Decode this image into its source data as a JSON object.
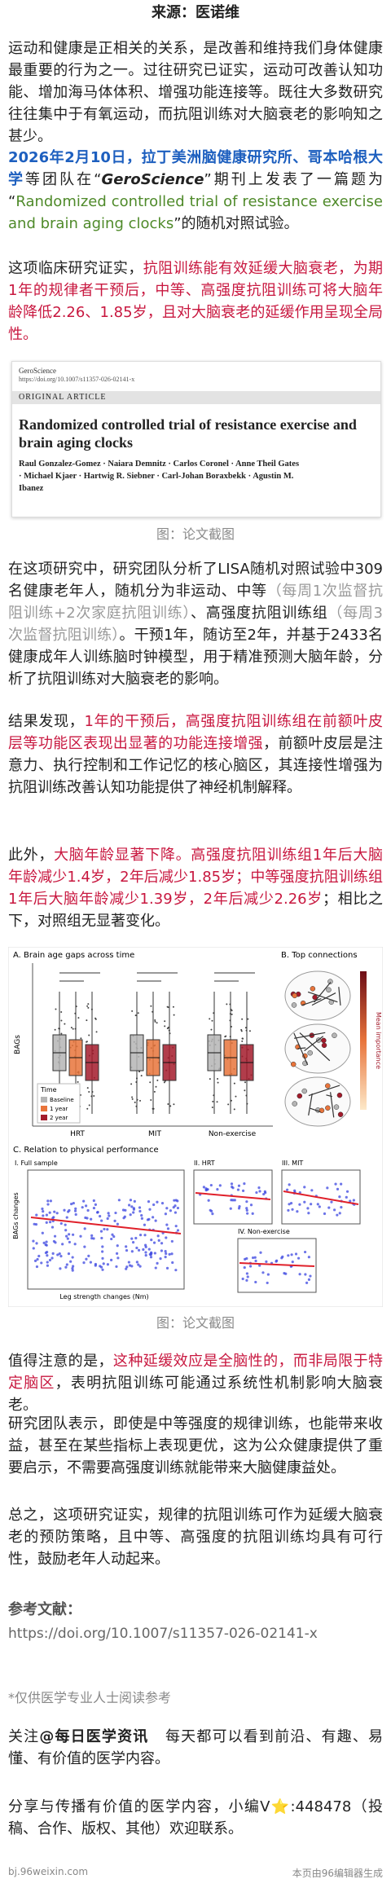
{
  "source": "来源：医诺维",
  "p1": "运动和健康是正相关的关系，是改善和维持我们身体健康最重要的行为之一。过往研究已证实，运动可改善认知功能、增加海马体体积、增强功能连接等。既往大多数研究往往集中于有氧运动，而抗阻训练对大脑衰老的影响知之甚少。",
  "p2": [
    "2026年2月10日，",
    "拉丁美洲脑健康研究所、哥本哈根大学",
    "等团队在“",
    "GeroScience",
    "”期刊上发表了一篇题为“",
    "Randomized controlled trial of resistance exercise and brain aging clocks",
    "”的随机对照试验。"
  ],
  "p3": [
    "这项临床研究证实，",
    "抗阻训练能有效延缓大脑衰老，为期1年的规律者干预后，中等、高强度抗阻训练可将大脑年龄降低2.26、1.85岁，且对大脑衰老的延缓作用呈现全局性。"
  ],
  "paper": {
    "journal": "GeroScience",
    "doi": "https://doi.org/10.1007/s11357-026-02141-x",
    "section": "ORIGINAL ARTICLE",
    "title": "Randomized controlled trial of resistance exercise and brain aging clocks",
    "authors": "Raul Gonzalez-Gomez · Naiara Demnitz · Carlos Coronel · Anne Theil Gates · Michael Kjaer · Hartwig R. Siebner · Carl-Johan Boraxbekk · Agustin M. Ibanez"
  },
  "caption1": "图：论文截图",
  "p4": [
    "在这项研究中，研究团队分析了LISA随机对照试验中309名健康老年人，随机分为非运动、中等",
    "（每周1次监督抗阻训练+2次家庭抗阻训练）",
    "、高强度抗阻训练组",
    "（每周3次监督抗阻训练）",
    "。干预1年，随访至2年，并基于2433名健康成年人训练脑时钟模型，用于精准预测大脑年龄，分析了抗阻训练对大脑衰老的影响。"
  ],
  "p5": [
    "结果发现，",
    "1年的干预后，高强度抗阻训练组在前额叶皮层等功能区表现出显著的功能连接增强",
    "，前额叶皮层是注意力、执行控制和工作记忆的核心脑区，其连接性增强为抗阻训练改善认知功能提供了神经机制解释。"
  ],
  "p6": [
    "此外，",
    "大脑年龄显著下降。高强度抗阻训练组1年后大脑年龄减少1.4岁，2年后减少1.85岁；中等强度抗阻训练组1年后大脑年龄减少1.39岁，2年后减少2.26岁",
    "；相比之下，对照组无显著变化。"
  ],
  "figure": {
    "panel_a": "A. Brain age gaps across time",
    "panel_b": "B. Top connections",
    "y_label": "BAGs",
    "groups": [
      "HRT",
      "MIT",
      "Non-exercise"
    ],
    "legend_title": "Time",
    "legend": [
      "Baseline",
      "1 year",
      "2 year"
    ],
    "colorbar": "Mean importance",
    "panel_c": "C. Relation to physical performance",
    "sub": [
      "I. Full sample",
      "II. HRT",
      "III. MIT",
      "IV. Non-exercise"
    ],
    "c_y_label": "BAGs changes",
    "c_x_label": "Leg strength changes (Nm)"
  },
  "caption2": "图：论文截图",
  "p7": [
    "值得注意的是，",
    "这种延缓效应是全脑性的，而非局限于特定脑区",
    "，表明抗阻训练可能通过系统性机制影响大脑衰老。"
  ],
  "p8": "研究团队表示，即使是中等强度的规律训练，也能带来收益，甚至在某些指标上表现更优，这为公众健康提供了重要启示，不需要高强度训练就能带来大脑健康益处。",
  "p9": "总之，这项研究证实，规律的抗阻训练可作为延缓大脑衰老的预防策略，且中等、高强度的抗阻训练均具有可行性，鼓励老年人动起来。",
  "ref_title": "参考文献：",
  "ref_url": "https://doi.org/10.1007/s11357-026-02141-x",
  "note": "*仅供医学专业人士阅读参考",
  "follow": [
    "关注",
    "@每日医学资讯",
    "每天都可以看到前沿、有趣、易懂、有价值的医学内容。"
  ],
  "share": "分享与传播有价值的医学内容，小编V⭐:448478（投稿、合作、版权、其他）欢迎联系。",
  "footer": [
    "bj.96weixin.com",
    "本页由96编辑器生成"
  ]
}
